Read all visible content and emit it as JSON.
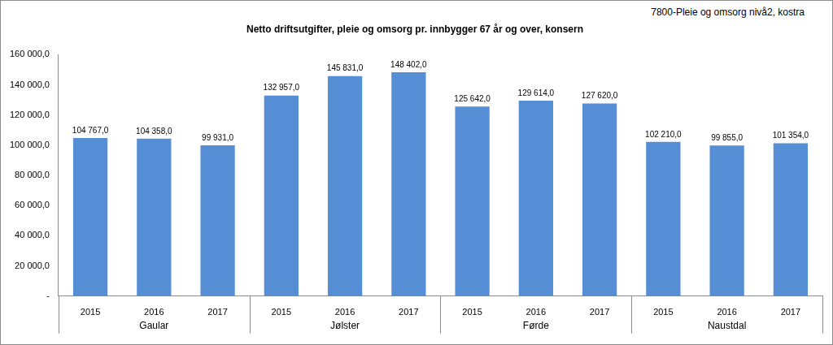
{
  "chart_data": {
    "type": "bar",
    "title": "Netto driftsutgifter, pleie og omsorg pr. innbygger 67 år og over, konsern",
    "annotation": "7800-Pleie og omsorg nivå2, kostra",
    "categories": [
      "2015",
      "2016",
      "2017",
      "2015",
      "2016",
      "2017",
      "2015",
      "2016",
      "2017",
      "2015",
      "2016",
      "2017"
    ],
    "category_groups": [
      "Gaular",
      "Jølster",
      "Førde",
      "Naustdal"
    ],
    "values": [
      104767,
      104358,
      99931,
      132957,
      145831,
      148402,
      125642,
      129614,
      127620,
      102210,
      99855,
      101354
    ],
    "value_labels": [
      "104 767,0",
      "104 358,0",
      "99 931,0",
      "132 957,0",
      "145 831,0",
      "148 402,0",
      "125 642,0",
      "129 614,0",
      "127 620,0",
      "102 210,0",
      "99 855,0",
      "101 354,0"
    ],
    "color": "#558ed5",
    "ylim": [
      0,
      160000
    ],
    "yticks": [
      {
        "value": 0,
        "label": "-"
      },
      {
        "value": 20000,
        "label": "20 000,0"
      },
      {
        "value": 40000,
        "label": "40 000,0"
      },
      {
        "value": 60000,
        "label": "60 000,0"
      },
      {
        "value": 80000,
        "label": "80 000,0"
      },
      {
        "value": 100000,
        "label": "100 000,0"
      },
      {
        "value": 120000,
        "label": "120 000,0"
      },
      {
        "value": 140000,
        "label": "140 000,0"
      },
      {
        "value": 160000,
        "label": "160 000,0"
      }
    ],
    "grid": false,
    "data_labels": true
  }
}
